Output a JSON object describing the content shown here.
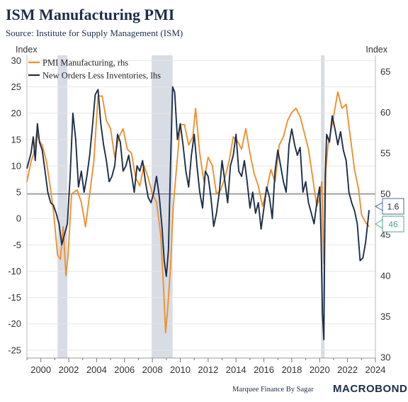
{
  "title": "ISM Manufacturing PMI",
  "subtitle": "Source: Institute for Supply Management (ISM)",
  "footer": {
    "credit": "Marquee Finance By Sagar",
    "brand": "MACROBOND"
  },
  "colors": {
    "pmi": "#f0902c",
    "new_orders": "#1c2e4a",
    "recession": "#d8dce4",
    "grid": "#e6e6e6",
    "callout_top_border": "#4a6890",
    "callout_bottom_border": "#4fa38c"
  },
  "chart_data": {
    "type": "line",
    "title": "ISM Manufacturing PMI",
    "subtitle": "Source: Institute for Supply Management (ISM)",
    "left_axis": {
      "label": "Index",
      "min": -26.5,
      "max": 31,
      "ticks": [
        30,
        25,
        20,
        15,
        10,
        5,
        0,
        -5,
        -10,
        -15,
        -20,
        -25
      ],
      "grid": true
    },
    "right_axis": {
      "label": "Index",
      "min": 29.9,
      "max": 67,
      "ticks": [
        65,
        60,
        55,
        50,
        45,
        40,
        35,
        30
      ]
    },
    "x_axis": {
      "min": 1999.0,
      "max": 2024.0,
      "ticks": [
        2000,
        2002,
        2004,
        2006,
        2008,
        2010,
        2012,
        2014,
        2016,
        2018,
        2020,
        2022,
        2024
      ]
    },
    "reference_line_right": 50,
    "recessions": [
      [
        2001.2,
        2001.9
      ],
      [
        2007.95,
        2009.45
      ],
      [
        2020.1,
        2020.35
      ]
    ],
    "legend_position": "top-left",
    "series": [
      {
        "name": "PMI Manufacturing, rhs",
        "axis": "right",
        "color": "#f0902c",
        "x": [
          1999.0,
          1999.3,
          1999.5,
          1999.7,
          1999.9,
          2000.1,
          2000.4,
          2000.7,
          2000.9,
          2001.2,
          2001.4,
          2001.6,
          2001.8,
          2001.95,
          2002.2,
          2002.6,
          2002.9,
          2003.2,
          2003.5,
          2003.8,
          2004.1,
          2004.4,
          2004.7,
          2005.0,
          2005.3,
          2005.6,
          2005.9,
          2006.2,
          2006.5,
          2006.8,
          2007.1,
          2007.4,
          2007.7,
          2008.0,
          2008.3,
          2008.6,
          2008.8,
          2008.95,
          2009.1,
          2009.3,
          2009.5,
          2009.8,
          2010.0,
          2010.3,
          2010.6,
          2010.9,
          2011.1,
          2011.4,
          2011.7,
          2012.0,
          2012.3,
          2012.6,
          2012.9,
          2013.2,
          2013.5,
          2013.8,
          2014.1,
          2014.4,
          2014.7,
          2015.0,
          2015.3,
          2015.6,
          2015.9,
          2016.2,
          2016.5,
          2016.8,
          2017.1,
          2017.4,
          2017.7,
          2018.0,
          2018.3,
          2018.6,
          2018.9,
          2019.2,
          2019.5,
          2019.8,
          2020.0,
          2020.15,
          2020.3,
          2020.45,
          2020.6,
          2020.9,
          2021.1,
          2021.3,
          2021.6,
          2021.9,
          2022.2,
          2022.5,
          2022.8,
          2023.0,
          2023.3,
          2023.55
        ],
        "y": [
          51.5,
          54.0,
          55.0,
          57.5,
          56.5,
          56.0,
          54.0,
          50.5,
          48.0,
          42.5,
          42.0,
          46.0,
          40.0,
          42.5,
          50.0,
          50.5,
          49.0,
          46.0,
          50.0,
          54.0,
          62.0,
          62.0,
          59.0,
          58.0,
          54.5,
          57.0,
          58.0,
          55.5,
          55.0,
          52.0,
          51.0,
          53.5,
          52.0,
          50.0,
          49.0,
          45.0,
          38.5,
          33.0,
          36.0,
          41.0,
          48.5,
          54.5,
          58.5,
          58.5,
          56.0,
          57.0,
          60.5,
          55.0,
          51.5,
          54.5,
          53.5,
          50.0,
          50.5,
          52.0,
          54.0,
          57.0,
          56.5,
          55.5,
          58.0,
          55.0,
          52.5,
          51.0,
          48.5,
          50.5,
          53.0,
          51.5,
          56.0,
          57.0,
          59.0,
          60.0,
          60.5,
          59.5,
          57.5,
          55.5,
          52.0,
          48.5,
          49.5,
          51.5,
          41.5,
          53.0,
          56.0,
          58.5,
          60.5,
          62.5,
          60.5,
          61.0,
          57.0,
          53.0,
          50.5,
          47.5,
          46.5,
          46.0
        ],
        "last_value_label": "46"
      },
      {
        "name": "New Orders Less Inventories, lhs",
        "axis": "left",
        "color": "#1c2e4a",
        "x": [
          1999.0,
          1999.15,
          1999.3,
          1999.45,
          1999.6,
          1999.75,
          1999.9,
          2000.1,
          2000.3,
          2000.5,
          2000.7,
          2000.9,
          2001.1,
          2001.3,
          2001.5,
          2001.7,
          2001.9,
          2002.1,
          2002.3,
          2002.5,
          2002.7,
          2002.9,
          2003.1,
          2003.3,
          2003.5,
          2003.7,
          2003.9,
          2004.1,
          2004.3,
          2004.5,
          2004.7,
          2004.9,
          2005.1,
          2005.3,
          2005.5,
          2005.7,
          2005.9,
          2006.1,
          2006.3,
          2006.5,
          2006.7,
          2006.9,
          2007.1,
          2007.3,
          2007.5,
          2007.7,
          2007.9,
          2008.1,
          2008.3,
          2008.5,
          2008.7,
          2008.85,
          2009.0,
          2009.15,
          2009.3,
          2009.45,
          2009.6,
          2009.8,
          2010.0,
          2010.2,
          2010.4,
          2010.6,
          2010.8,
          2011.0,
          2011.2,
          2011.4,
          2011.6,
          2011.8,
          2012.0,
          2012.2,
          2012.4,
          2012.6,
          2012.8,
          2013.0,
          2013.2,
          2013.4,
          2013.6,
          2013.8,
          2014.0,
          2014.2,
          2014.4,
          2014.6,
          2014.8,
          2015.0,
          2015.2,
          2015.4,
          2015.6,
          2015.8,
          2016.0,
          2016.2,
          2016.4,
          2016.6,
          2016.8,
          2017.0,
          2017.2,
          2017.4,
          2017.6,
          2017.8,
          2018.0,
          2018.2,
          2018.4,
          2018.6,
          2018.8,
          2019.0,
          2019.2,
          2019.4,
          2019.6,
          2019.8,
          2020.0,
          2020.1,
          2020.2,
          2020.3,
          2020.4,
          2020.5,
          2020.7,
          2020.9,
          2021.1,
          2021.3,
          2021.5,
          2021.7,
          2021.9,
          2022.1,
          2022.3,
          2022.5,
          2022.7,
          2022.9,
          2023.1,
          2023.3,
          2023.55
        ],
        "y": [
          9.5,
          11.0,
          12.5,
          15.5,
          11.0,
          18.0,
          14.5,
          13.0,
          9.0,
          5.0,
          3.0,
          2.5,
          1.0,
          -1.0,
          -5.0,
          -3.0,
          -1.0,
          8.0,
          20.0,
          15.0,
          6.0,
          9.0,
          5.0,
          8.0,
          12.0,
          17.5,
          23.5,
          24.5,
          18.0,
          14.0,
          11.0,
          7.0,
          8.0,
          10.0,
          16.0,
          14.5,
          9.0,
          10.0,
          12.0,
          8.5,
          5.0,
          10.0,
          9.0,
          11.0,
          7.0,
          4.0,
          3.0,
          5.0,
          8.0,
          4.0,
          -2.0,
          -8.0,
          -11.0,
          -6.0,
          10.0,
          25.0,
          24.0,
          15.0,
          18.0,
          14.0,
          9.0,
          6.0,
          12.0,
          16.0,
          10.0,
          5.0,
          2.0,
          9.0,
          8.0,
          4.0,
          -1.5,
          1.0,
          5.0,
          11.0,
          7.0,
          3.0,
          10.0,
          12.0,
          16.0,
          9.0,
          8.0,
          11.0,
          7.0,
          2.0,
          5.0,
          1.0,
          3.0,
          -2.0,
          2.0,
          6.0,
          4.0,
          0.0,
          9.0,
          13.0,
          10.0,
          7.0,
          5.0,
          14.0,
          17.0,
          14.0,
          12.0,
          13.5,
          5.0,
          7.0,
          3.0,
          1.0,
          -1.0,
          3.0,
          6.0,
          -3.0,
          -18.0,
          -23.0,
          8.0,
          16.0,
          14.5,
          19.5,
          17.0,
          14.0,
          16.5,
          13.0,
          11.0,
          5.0,
          3.0,
          1.5,
          -1.0,
          -8.0,
          -7.5,
          -4.5,
          1.6
        ],
        "last_value_label": "1.6"
      }
    ]
  }
}
